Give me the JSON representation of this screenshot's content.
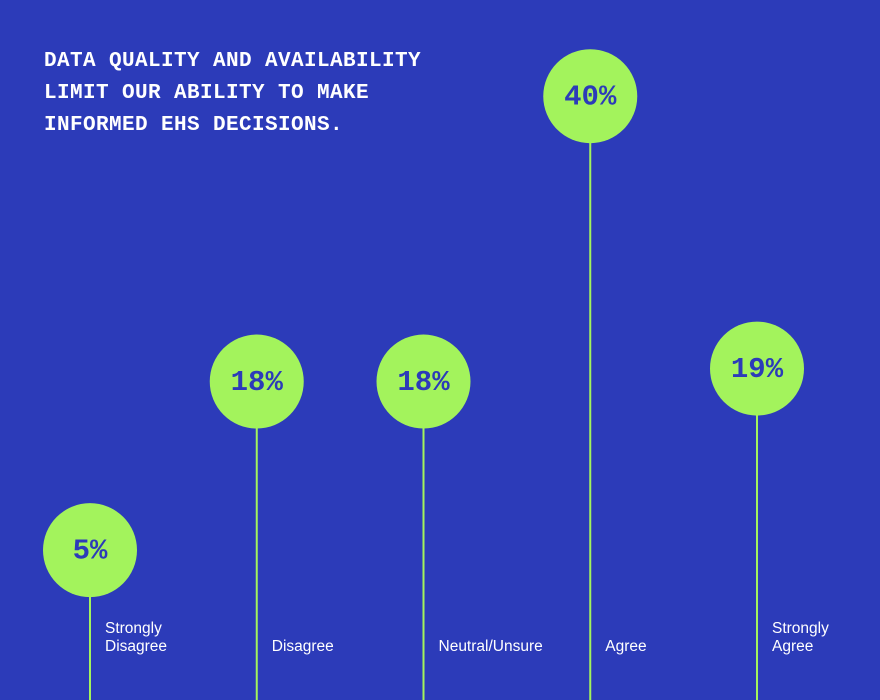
{
  "chart_data": {
    "type": "lollipop",
    "title": "DATA QUALITY AND AVAILABILITY LIMIT OUR ABILITY TO MAKE INFORMED EHS DECISIONS.",
    "categories": [
      "Strongly Disagree",
      "Disagree",
      "Neutral/Unsure",
      "Agree",
      "Strongly Agree"
    ],
    "values": [
      5,
      18,
      18,
      40,
      19
    ],
    "value_labels": [
      "5%",
      "18%",
      "18%",
      "40%",
      "19%"
    ],
    "color": "#a3f35c"
  }
}
